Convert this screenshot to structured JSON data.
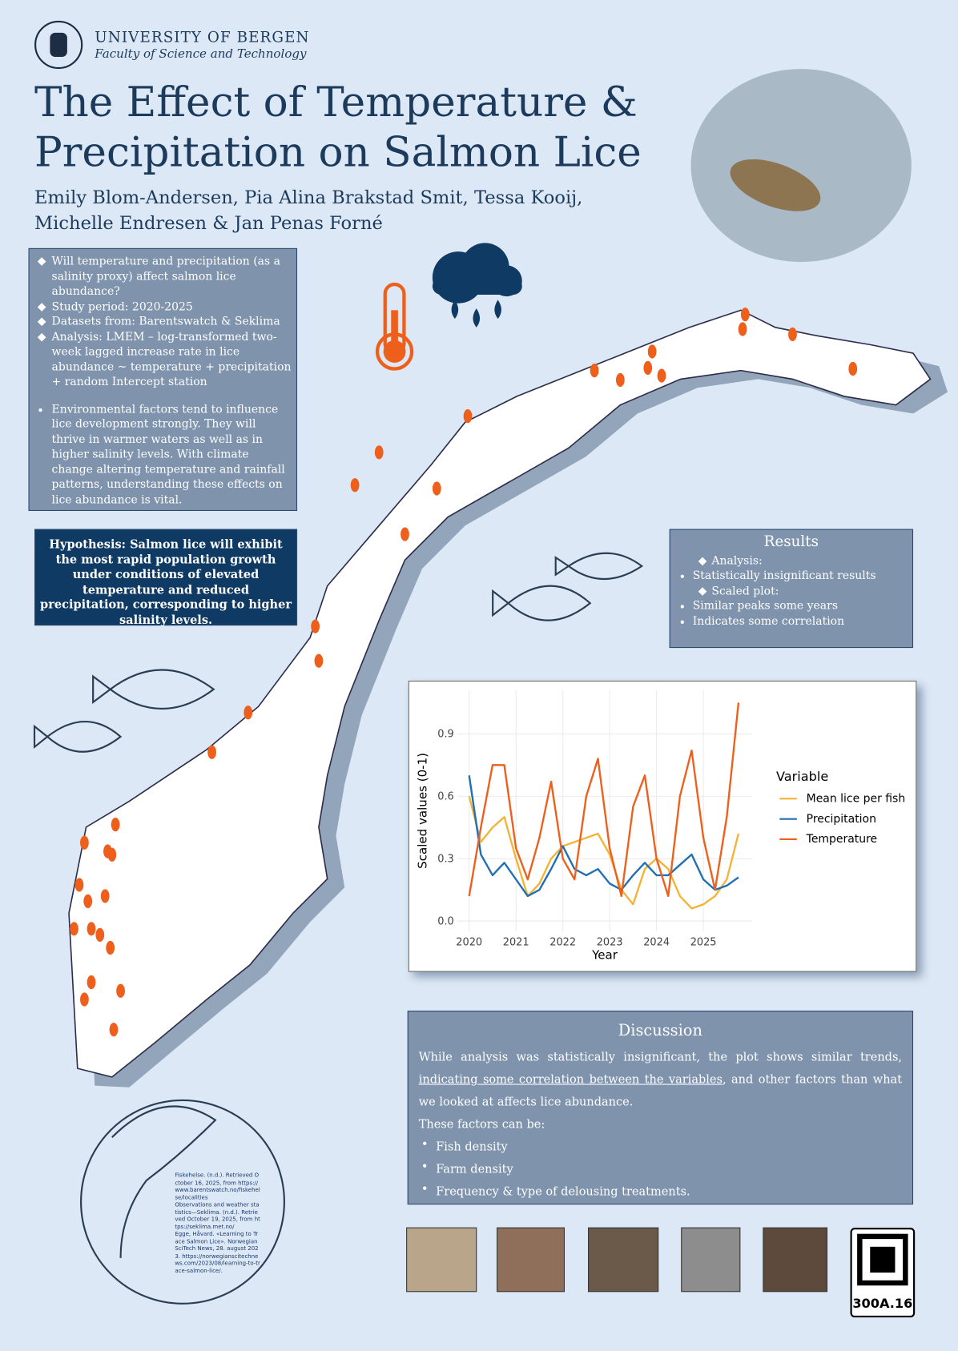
{
  "header": {
    "university": "UNIVERSITY OF BERGEN",
    "faculty": "Faculty of Science and Technology"
  },
  "title": [
    "The Effect of Temperature &",
    "Precipitation on Salmon Lice"
  ],
  "authors": [
    "Emily Blom-Andersen, Pia Alina Brakstad Smit, Tessa Kooij,",
    "Michelle Endresen & Jan Penas Forné"
  ],
  "intro": {
    "items": [
      "Will temperature and precipitation (as a salinity proxy) affect salmon lice abundance?",
      "Study period: 2020-2025",
      "Datasets from: Barentswatch & Seklima",
      "Analysis: LMEM – log-transformed two-week lagged increase rate in lice abundance ~ temperature + precipitation + random Intercept station"
    ],
    "note": "Environmental factors tend to influence lice development strongly. They will thrive in warmer waters as well as in higher salinity levels. With climate change altering temperature and rainfall patterns, understanding these effects on lice abundance is vital."
  },
  "hypothesis": "Hypothesis: Salmon lice will exhibit the most rapid population growth under conditions of elevated temperature and reduced precipitation, corresponding to higher salinity levels.",
  "results": {
    "title": "Results",
    "items": [
      "Analysis:",
      "Statistically insignificant results",
      "Scaled plot:",
      "Similar peaks some years",
      "Indicates some correlation"
    ]
  },
  "chart_data": {
    "type": "line",
    "x_label": "Year",
    "y_label": "Scaled values (0-1)",
    "legend_title": "Variable",
    "x": [
      2020,
      2020.25,
      2020.5,
      2020.75,
      2021,
      2021.25,
      2021.5,
      2021.75,
      2022,
      2022.25,
      2022.5,
      2022.75,
      2023,
      2023.25,
      2023.5,
      2023.75,
      2024,
      2024.25,
      2024.5,
      2024.75,
      2025,
      2025.25,
      2025.5,
      2025.75
    ],
    "series": [
      {
        "name": "Mean lice per fish",
        "color": "#f5b335",
        "values": [
          0.6,
          0.38,
          0.45,
          0.5,
          0.3,
          0.12,
          0.18,
          0.3,
          0.36,
          0.38,
          0.4,
          0.42,
          0.32,
          0.15,
          0.08,
          0.25,
          0.3,
          0.25,
          0.12,
          0.06,
          0.08,
          0.12,
          0.2,
          0.42
        ]
      },
      {
        "name": "Precipitation",
        "color": "#1f6fb4",
        "values": [
          0.7,
          0.32,
          0.22,
          0.28,
          0.2,
          0.12,
          0.15,
          0.25,
          0.36,
          0.25,
          0.22,
          0.25,
          0.18,
          0.15,
          0.22,
          0.28,
          0.22,
          0.22,
          0.27,
          0.32,
          0.2,
          0.15,
          0.17,
          0.21
        ]
      },
      {
        "name": "Temperature",
        "color": "#ee5f1c",
        "values": [
          0.12,
          0.45,
          0.75,
          0.75,
          0.35,
          0.2,
          0.4,
          0.67,
          0.3,
          0.2,
          0.6,
          0.78,
          0.35,
          0.12,
          0.55,
          0.7,
          0.3,
          0.12,
          0.6,
          0.82,
          0.4,
          0.15,
          0.5,
          1.05
        ]
      }
    ],
    "xlim": [
      2019.75,
      2026.04
    ],
    "ylim": [
      -0.05,
      1.11
    ],
    "xticks": [
      2020,
      2021,
      2022,
      2023,
      2024,
      2025
    ],
    "yticks": [
      {
        "value": 0,
        "label": "0.0"
      },
      0.3,
      0.6,
      0.9
    ],
    "grid": true
  },
  "discussion": {
    "title": "Discussion",
    "parts": [
      "While analysis was statistically insignificant, the plot shows similar trends, ",
      "indicating some correlation between the variables",
      ", and other factors than what we looked at affects lice abundance."
    ],
    "lead": "These factors can be:",
    "items": [
      "Fish density",
      "Farm density",
      "Frequency & type of delousing treatments."
    ]
  },
  "references": [
    "Fiskehelse. (n.d.). Retrieved October 16, 2025, from https://www.barentswatch.no/fiskehelse/localities",
    "Observations and weather statistics—Seklima. (n.d.). Retrieved October 19, 2025, from https://seklima.met.no/",
    "Egge, Håvard. «Learning to Trace Salmon Lice». Norwegian SciTech News, 28. august 2023. https://norwegianscitechnews.com/2023/08/learning-to-trace-salmon-lice/."
  ],
  "qr_label": "300A.16"
}
